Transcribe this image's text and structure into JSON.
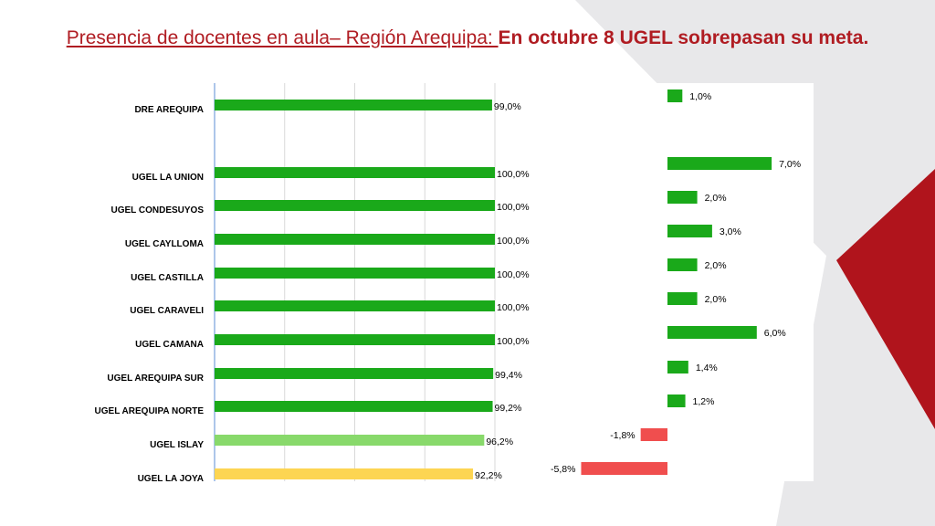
{
  "title": {
    "part1": "Presencia de docentes en aula– Región Arequipa: ",
    "part2": "En octubre 8 UGEL sobrepasan su meta."
  },
  "colors": {
    "dark_green": "#1aa91a",
    "light_green": "#88d96b",
    "yellow": "#fdd552",
    "red": "#f04e4e",
    "brand_red": "#b01c22"
  },
  "chart_data": [
    {
      "type": "bar",
      "orientation": "horizontal",
      "categories": [
        "DRE AREQUIPA",
        "UGEL LA UNION",
        "UGEL CONDESUYOS",
        "UGEL CAYLLOMA",
        "UGEL CASTILLA",
        "UGEL CARAVELI",
        "UGEL CAMANA",
        "UGEL AREQUIPA SUR",
        "UGEL AREQUIPA NORTE",
        "UGEL ISLAY",
        "UGEL LA JOYA"
      ],
      "values": [
        99.0,
        100.0,
        100.0,
        100.0,
        100.0,
        100.0,
        100.0,
        99.4,
        99.2,
        96.2,
        92.2
      ],
      "value_labels": [
        "99,0%",
        "100,0%",
        "100,0%",
        "100,0%",
        "100,0%",
        "100,0%",
        "100,0%",
        "99,4%",
        "99,2%",
        "96,2%",
        "92,2%"
      ],
      "bar_colors": [
        "#1aa91a",
        "#1aa91a",
        "#1aa91a",
        "#1aa91a",
        "#1aa91a",
        "#1aa91a",
        "#1aa91a",
        "#1aa91a",
        "#1aa91a",
        "#88d96b",
        "#fdd552"
      ],
      "xlim": [
        0,
        100
      ],
      "grid": true
    },
    {
      "type": "bar",
      "orientation": "horizontal",
      "categories": [
        "DRE AREQUIPA",
        "UGEL LA UNION",
        "UGEL CONDESUYOS",
        "UGEL CAYLLOMA",
        "UGEL CASTILLA",
        "UGEL CARAVELI",
        "UGEL CAMANA",
        "UGEL AREQUIPA SUR",
        "UGEL AREQUIPA NORTE",
        "UGEL ISLAY",
        "UGEL LA JOYA"
      ],
      "values": [
        1.0,
        7.0,
        2.0,
        3.0,
        2.0,
        2.0,
        6.0,
        1.4,
        1.2,
        -1.8,
        -5.8
      ],
      "value_labels": [
        "1,0%",
        "7,0%",
        "2,0%",
        "3,0%",
        "2,0%",
        "2,0%",
        "6,0%",
        "1,4%",
        "1,2%",
        "-1,8%",
        "-5,8%"
      ],
      "bar_colors": [
        "#1aa91a",
        "#1aa91a",
        "#1aa91a",
        "#1aa91a",
        "#1aa91a",
        "#1aa91a",
        "#1aa91a",
        "#1aa91a",
        "#1aa91a",
        "#f04e4e",
        "#f04e4e"
      ],
      "grid": false
    }
  ]
}
